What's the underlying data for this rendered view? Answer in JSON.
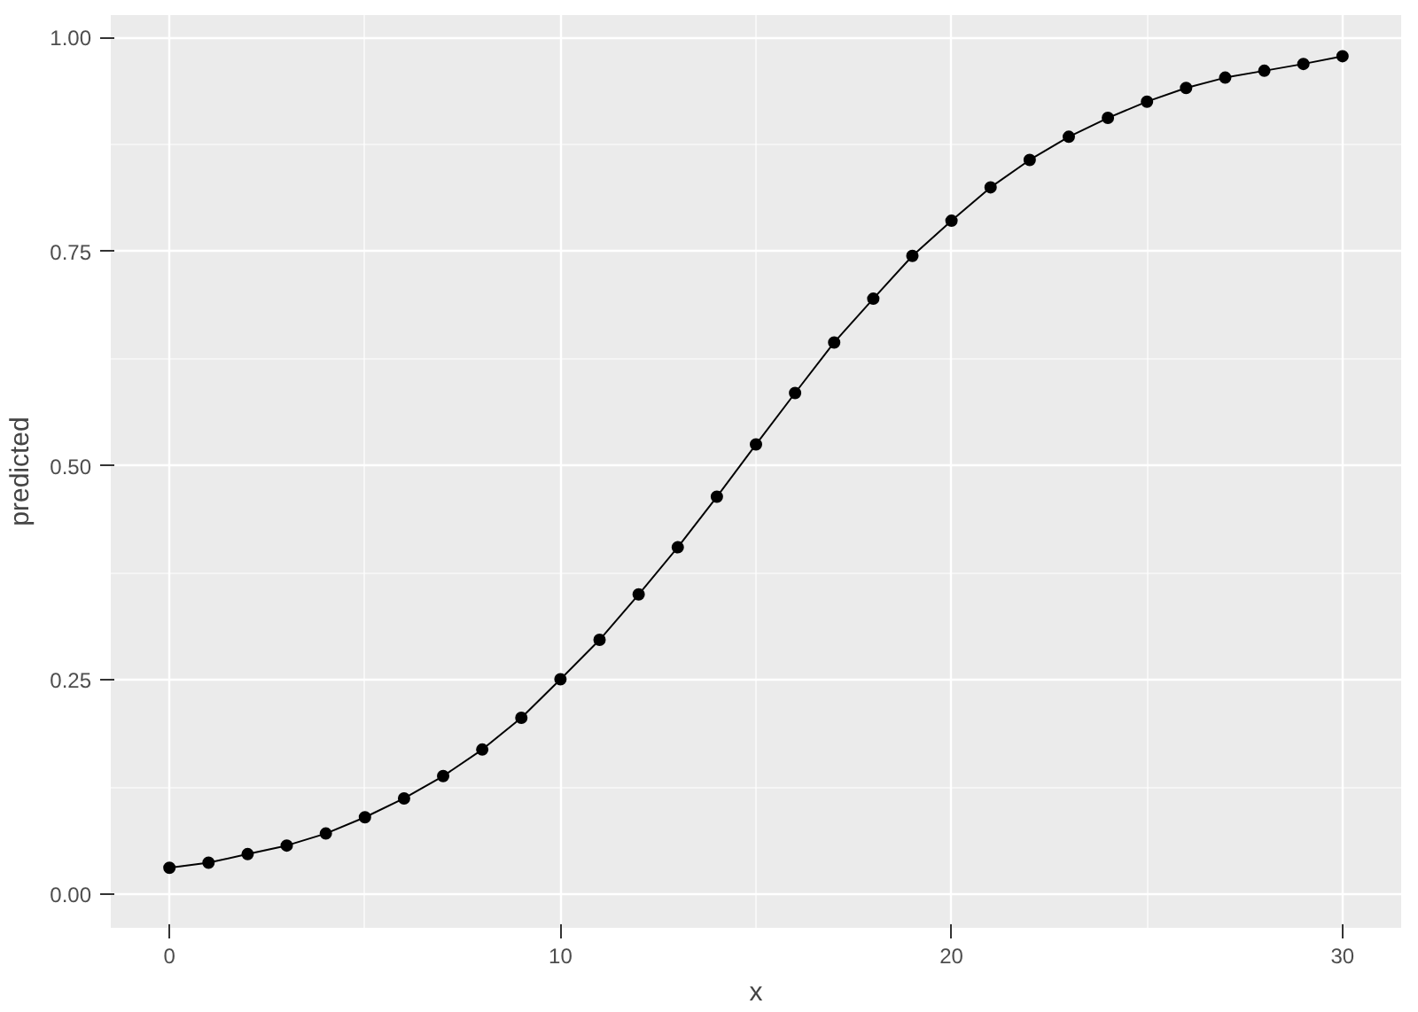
{
  "chart_data": {
    "type": "line",
    "xlabel": "x",
    "ylabel": "predicted",
    "x": [
      0,
      1,
      2,
      3,
      4,
      5,
      6,
      7,
      8,
      9,
      10,
      11,
      12,
      13,
      14,
      15,
      16,
      17,
      18,
      19,
      20,
      21,
      22,
      23,
      24,
      25,
      26,
      27,
      28,
      29,
      30
    ],
    "series": [
      {
        "color": "#000000",
        "values": [
          0.031,
          0.037,
          0.047,
          0.057,
          0.071,
          0.09,
          0.112,
          0.138,
          0.169,
          0.206,
          0.251,
          0.297,
          0.35,
          0.405,
          0.464,
          0.525,
          0.585,
          0.644,
          0.695,
          0.745,
          0.786,
          0.825,
          0.857,
          0.884,
          0.906,
          0.925,
          0.941,
          0.953,
          0.961,
          0.969,
          0.978
        ]
      }
    ],
    "xlim": [
      -1.5,
      31.5
    ],
    "ylim": [
      -0.039,
      1.026
    ],
    "xticks": [
      0,
      10,
      20,
      30
    ],
    "yticks": [
      {
        "value": 0,
        "label": "0.00"
      },
      {
        "value": 0.25,
        "label": "0.25"
      },
      {
        "value": 0.5,
        "label": "0.50"
      },
      {
        "value": 0.75,
        "label": "0.75"
      },
      {
        "value": 1,
        "label": "1.00"
      }
    ],
    "grid": true,
    "marker": "circle",
    "line_style": "solid"
  }
}
